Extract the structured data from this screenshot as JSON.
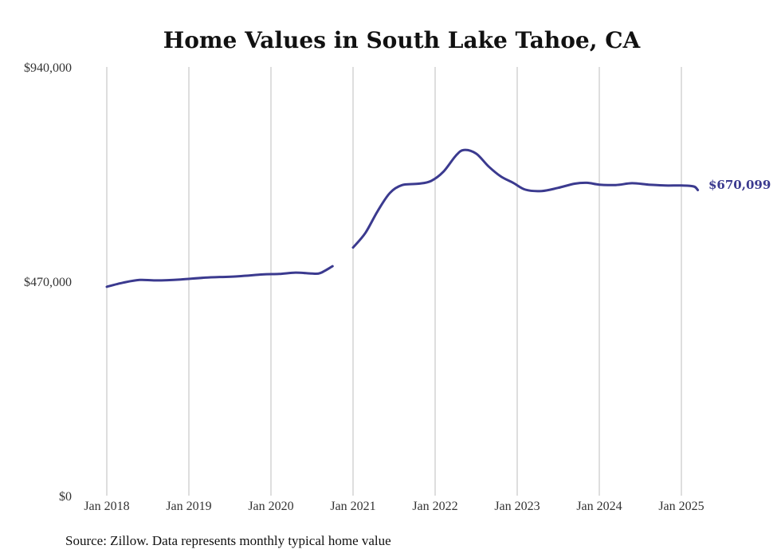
{
  "chart_data": {
    "type": "line",
    "title": "Home Values in South Lake Tahoe, CA",
    "xlabel": "",
    "ylabel": "",
    "source": "Source: Zillow. Data represents monthly typical home value",
    "ylim": [
      0,
      940000
    ],
    "yticks": [
      {
        "value": 0,
        "label": "$0"
      },
      {
        "value": 470000,
        "label": "$470,000"
      },
      {
        "value": 940000,
        "label": "$940,000"
      }
    ],
    "xticks": [
      {
        "value": 2018.0,
        "label": "Jan 2018"
      },
      {
        "value": 2019.0,
        "label": "Jan 2019"
      },
      {
        "value": 2020.0,
        "label": "Jan 2020"
      },
      {
        "value": 2021.0,
        "label": "Jan 2021"
      },
      {
        "value": 2022.0,
        "label": "Jan 2022"
      },
      {
        "value": 2023.0,
        "label": "Jan 2023"
      },
      {
        "value": 2024.0,
        "label": "Jan 2024"
      },
      {
        "value": 2025.0,
        "label": "Jan 2025"
      }
    ],
    "xlim": [
      2018.0,
      2025.2
    ],
    "grid": "vertical",
    "line_color": "#3b3a8f",
    "end_label": "$670,099",
    "series": [
      {
        "segments": [
          [
            [
              2018.0,
              458000
            ],
            [
              2018.2,
              467000
            ],
            [
              2018.4,
              473000
            ],
            [
              2018.6,
              472000
            ],
            [
              2018.9,
              474000
            ],
            [
              2019.2,
              478000
            ],
            [
              2019.6,
              481000
            ],
            [
              2019.9,
              485000
            ],
            [
              2020.1,
              486000
            ],
            [
              2020.3,
              489000
            ],
            [
              2020.5,
              487000
            ],
            [
              2020.6,
              488000
            ],
            [
              2020.75,
              503000
            ]
          ],
          [
            [
              2021.0,
              544000
            ],
            [
              2021.15,
              576000
            ],
            [
              2021.3,
              624000
            ],
            [
              2021.45,
              664000
            ],
            [
              2021.6,
              681000
            ],
            [
              2021.8,
              684000
            ],
            [
              2021.95,
              690000
            ],
            [
              2022.1,
              710000
            ],
            [
              2022.25,
              745000
            ],
            [
              2022.35,
              758000
            ],
            [
              2022.5,
              750000
            ],
            [
              2022.65,
              722000
            ],
            [
              2022.8,
              700000
            ],
            [
              2022.95,
              686000
            ],
            [
              2023.1,
              671000
            ],
            [
              2023.3,
              668000
            ],
            [
              2023.5,
              675000
            ],
            [
              2023.7,
              684000
            ],
            [
              2023.85,
              686000
            ],
            [
              2024.0,
              682000
            ],
            [
              2024.2,
              681000
            ],
            [
              2024.4,
              685000
            ],
            [
              2024.6,
              682000
            ],
            [
              2024.8,
              680000
            ],
            [
              2025.0,
              680000
            ],
            [
              2025.15,
              678000
            ],
            [
              2025.2,
              670099
            ]
          ]
        ]
      }
    ]
  }
}
